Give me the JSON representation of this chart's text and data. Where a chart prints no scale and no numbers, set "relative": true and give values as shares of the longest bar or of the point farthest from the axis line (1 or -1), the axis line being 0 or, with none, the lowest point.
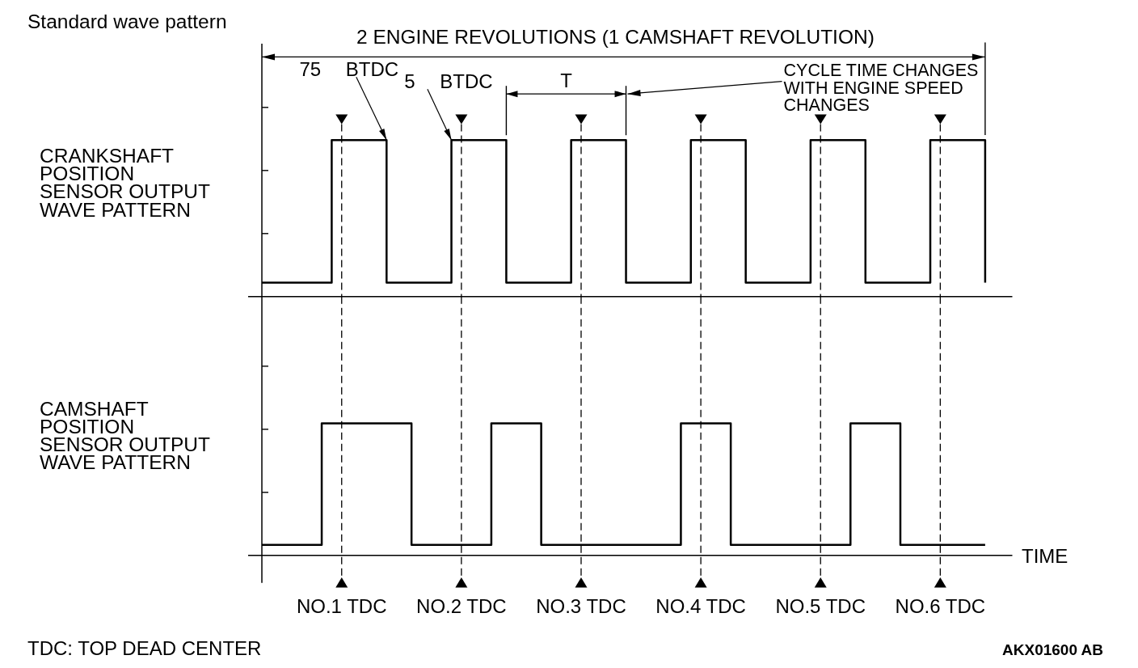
{
  "chart_data": [
    {
      "type": "step",
      "title": "Standard wave pattern",
      "ylabel": "CRANKSHAFT POSITION SENSOR OUTPUT WAVE PATTERN",
      "relative": true,
      "color": "#000000",
      "categories": [
        null,
        null,
        null,
        null,
        null,
        null,
        null,
        null,
        null,
        null,
        null,
        null,
        null,
        null,
        null,
        null,
        null,
        null,
        null,
        null,
        null,
        null,
        null,
        null,
        null,
        null,
        null,
        null,
        null,
        null,
        null,
        null,
        null,
        null,
        null,
        null,
        null,
        null,
        null,
        null,
        null,
        null,
        null,
        null,
        null,
        null,
        null,
        null,
        null,
        null,
        null,
        null,
        null,
        null,
        null,
        null,
        null,
        null,
        null,
        null,
        null,
        null,
        null,
        null,
        null,
        null,
        null,
        null,
        null,
        null,
        null,
        null,
        null,
        null,
        null,
        null,
        null,
        null,
        null,
        null,
        null,
        null,
        null,
        null,
        null,
        null,
        null,
        null,
        null,
        null,
        null,
        null,
        null,
        null,
        null,
        null,
        null,
        null,
        null,
        null,
        null,
        null,
        null,
        null,
        null,
        null,
        null,
        null,
        null,
        null,
        null,
        null,
        null,
        null,
        null,
        null,
        null,
        null,
        null,
        null,
        null,
        null,
        null,
        null,
        null,
        null,
        null,
        null,
        null,
        null,
        null,
        null,
        null,
        null,
        null,
        null,
        null,
        null,
        null,
        null,
        null,
        null,
        null,
        null,
        null,
        null
      ],
      "values": [
        0.09,
        0.09,
        0.09,
        0.09,
        0.09,
        0.09,
        0.09,
        0.09,
        0.09,
        0.09,
        0.09,
        0.09,
        0.09,
        0.09,
        1,
        1,
        1,
        1,
        1,
        1,
        1,
        1,
        1,
        1,
        1,
        0.09,
        0.09,
        0.09,
        0.09,
        0.09,
        0.09,
        0.09,
        0.09,
        0.09,
        0.09,
        0.09,
        0.09,
        0.09,
        1,
        1,
        1,
        1,
        1,
        1,
        1,
        1,
        1,
        1,
        1,
        0.09,
        0.09,
        0.09,
        0.09,
        0.09,
        0.09,
        0.09,
        0.09,
        0.09,
        0.09,
        0.09,
        0.09,
        0.09,
        1,
        1,
        1,
        1,
        1,
        1,
        1,
        1,
        1,
        1,
        1,
        0.09,
        0.09,
        0.09,
        0.09,
        0.09,
        0.09,
        0.09,
        0.09,
        0.09,
        0.09,
        0.09,
        0.09,
        0.09,
        1,
        1,
        1,
        1,
        1,
        1,
        1,
        1,
        1,
        1,
        1,
        0.09,
        0.09,
        0.09,
        0.09,
        0.09,
        0.09,
        0.09,
        0.09,
        0.09,
        0.09,
        0.09,
        0.09,
        0.09,
        1,
        1,
        1,
        1,
        1,
        1,
        1,
        1,
        1,
        1,
        1,
        0.09,
        0.09,
        0.09,
        0.09,
        0.09,
        0.09,
        0.09,
        0.09,
        0.09,
        0.09,
        0.09,
        0.09,
        0.09,
        1,
        1,
        1,
        1,
        1,
        1,
        1,
        1,
        1,
        1,
        1,
        0.09
      ],
      "grid": "x",
      "annotations": [
        "2 ENGINE REVOLUTIONS (1 CAMSHAFT REVOLUTION)",
        "75 BTDC",
        "5 BTDC",
        "T",
        "CYCLE TIME CHANGES WITH ENGINE SPEED CHANGES"
      ]
    },
    {
      "type": "step",
      "ylabel": "CAMSHAFT POSITION SENSOR OUTPUT WAVE PATTERN",
      "xlabel": "TIME",
      "relative": true,
      "color": "#000000",
      "categories": [
        null,
        null,
        null,
        null,
        null,
        null,
        null,
        null,
        null,
        null,
        null,
        null,
        null,
        null,
        null,
        null,
        "NO.1 TDC",
        null,
        null,
        null,
        null,
        null,
        null,
        null,
        null,
        null,
        null,
        null,
        null,
        null,
        null,
        null,
        null,
        null,
        null,
        null,
        null,
        null,
        null,
        null,
        "NO.2 TDC",
        null,
        null,
        null,
        null,
        null,
        null,
        null,
        null,
        null,
        null,
        null,
        null,
        null,
        null,
        null,
        null,
        null,
        null,
        null,
        null,
        null,
        null,
        null,
        "NO.3 TDC",
        null,
        null,
        null,
        null,
        null,
        null,
        null,
        null,
        null,
        null,
        null,
        null,
        null,
        null,
        null,
        null,
        null,
        null,
        null,
        null,
        null,
        null,
        null,
        "NO.4 TDC",
        null,
        null,
        null,
        null,
        null,
        null,
        null,
        null,
        null,
        null,
        null,
        null,
        null,
        null,
        null,
        null,
        null,
        null,
        null,
        null,
        null,
        null,
        null,
        "NO.5 TDC",
        null,
        null,
        null,
        null,
        null,
        null,
        null,
        null,
        null,
        null,
        null,
        null,
        null,
        null,
        null,
        null,
        null,
        null,
        null,
        null,
        null,
        null,
        null,
        "NO.6 TDC",
        null,
        null,
        null,
        null,
        null,
        null,
        null,
        null,
        null
      ],
      "values": [
        0.08,
        0.08,
        0.08,
        0.08,
        0.08,
        0.08,
        0.08,
        0.08,
        0.08,
        0.08,
        0.08,
        0.08,
        1,
        1,
        1,
        1,
        1,
        1,
        1,
        1,
        1,
        1,
        1,
        1,
        1,
        1,
        1,
        1,
        1,
        1,
        0.08,
        0.08,
        0.08,
        0.08,
        0.08,
        0.08,
        0.08,
        0.08,
        0.08,
        0.08,
        0.08,
        0.08,
        0.08,
        0.08,
        0.08,
        0.08,
        1,
        1,
        1,
        1,
        1,
        1,
        1,
        1,
        1,
        1,
        0.08,
        0.08,
        0.08,
        0.08,
        0.08,
        0.08,
        0.08,
        0.08,
        0.08,
        0.08,
        0.08,
        0.08,
        0.08,
        0.08,
        0.08,
        0.08,
        0.08,
        0.08,
        0.08,
        0.08,
        0.08,
        0.08,
        0.08,
        0.08,
        0.08,
        0.08,
        0.08,
        0.08,
        1,
        1,
        1,
        1,
        1,
        1,
        1,
        1,
        1,
        1,
        0.08,
        0.08,
        0.08,
        0.08,
        0.08,
        0.08,
        0.08,
        0.08,
        0.08,
        0.08,
        0.08,
        0.08,
        0.08,
        0.08,
        0.08,
        0.08,
        0.08,
        0.08,
        0.08,
        0.08,
        0.08,
        0.08,
        0.08,
        0.08,
        1,
        1,
        1,
        1,
        1,
        1,
        1,
        1,
        1,
        1,
        0.08,
        0.08,
        0.08,
        0.08,
        0.08,
        0.08,
        0.08,
        0.08,
        0.08,
        0.08,
        0.08,
        0.08,
        0.08,
        0.08,
        0.08,
        0.08,
        0.08,
        0.08
      ],
      "tick_labels": "x",
      "grid": "x",
      "annotations": [
        "TDC: TOP DEAD CENTER",
        "AKX01600 AB"
      ]
    }
  ]
}
